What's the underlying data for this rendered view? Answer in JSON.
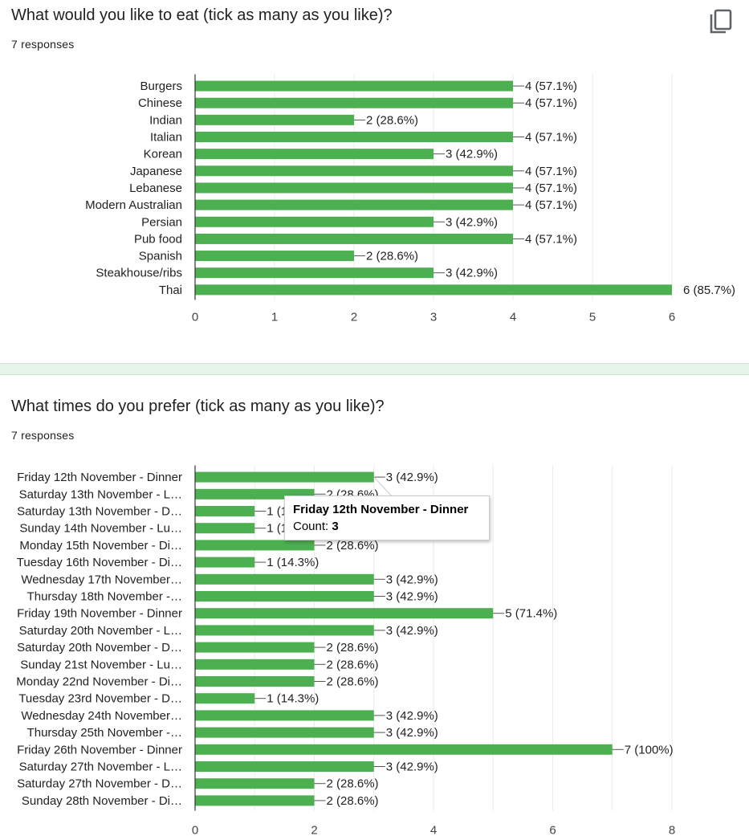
{
  "colors": {
    "bar": "#4caf50",
    "axis": "#333333",
    "grid": "#ebebeb",
    "text": "#222222"
  },
  "icons": {
    "copy": "copy-icon"
  },
  "questions": [
    {
      "title": "What would you like to eat (tick as many as you like)?",
      "responses": "7 responses",
      "chart_data": {
        "type": "bar",
        "orientation": "horizontal",
        "categories": [
          "Burgers",
          "Chinese",
          "Indian",
          "Italian",
          "Korean",
          "Japanese",
          "Lebanese",
          "Modern Australian",
          "Persian",
          "Pub food",
          "Spanish",
          "Steakhouse/ribs",
          "Thai"
        ],
        "values": [
          4,
          4,
          2,
          4,
          3,
          4,
          4,
          4,
          3,
          4,
          2,
          3,
          6
        ],
        "data_labels": [
          "4 (57.1%)",
          "4 (57.1%)",
          "2 (28.6%)",
          "4 (57.1%)",
          "3 (42.9%)",
          "4 (57.1%)",
          "4 (57.1%)",
          "4 (57.1%)",
          "3 (42.9%)",
          "4 (57.1%)",
          "2 (28.6%)",
          "3 (42.9%)",
          "6 (85.7%)"
        ],
        "xlim": [
          0,
          6
        ],
        "xticks": [
          0,
          1,
          2,
          3,
          4,
          5,
          6
        ],
        "grid": true
      }
    },
    {
      "title": "What times do you prefer (tick as many as you like)?",
      "responses": "7 responses",
      "chart_data": {
        "type": "bar",
        "orientation": "horizontal",
        "categories": [
          "Friday 12th November - Dinner",
          "Saturday 13th November - L…",
          "Saturday 13th November - D…",
          "Sunday 14th November - Lu…",
          "Monday 15th November - Di…",
          "Tuesday 16th November - Di…",
          "Wednesday 17th November…",
          "Thursday 18th November -…",
          "Friday 19th November - Dinner",
          "Saturday 20th November - L…",
          "Saturday 20th November - D…",
          "Sunday 21st November - Lu…",
          "Monday 22nd November - Di…",
          "Tuesday 23rd November - D…",
          "Wednesday 24th November…",
          "Thursday 25th November -…",
          "Friday 26th November - Dinner",
          "Saturday 27th November - L…",
          "Saturday 27th November - D…",
          "Sunday 28th November - Di…"
        ],
        "values": [
          3,
          2,
          1,
          1,
          2,
          1,
          3,
          3,
          5,
          3,
          2,
          2,
          2,
          1,
          3,
          3,
          7,
          3,
          2,
          2
        ],
        "data_labels": [
          "3 (42.9%)",
          "2 (28.6%)",
          "1 (14.3%)",
          "1 (14.3%)",
          "2 (28.6%)",
          "1 (14.3%)",
          "3 (42.9%)",
          "3 (42.9%)",
          "5 (71.4%)",
          "3 (42.9%)",
          "2 (28.6%)",
          "2 (28.6%)",
          "2 (28.6%)",
          "1 (14.3%)",
          "3 (42.9%)",
          "3 (42.9%)",
          "7 (100%)",
          "3 (42.9%)",
          "2 (28.6%)",
          "2 (28.6%)"
        ],
        "xlim": [
          0,
          8
        ],
        "xticks": [
          0,
          2,
          4,
          6,
          8
        ],
        "grid": true
      },
      "tooltip": {
        "title": "Friday 12th November - Dinner",
        "count_label": "Count: ",
        "count_value": "3"
      }
    }
  ]
}
